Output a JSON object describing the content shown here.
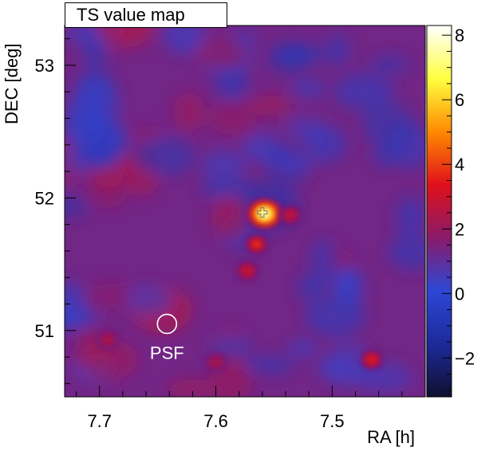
{
  "chart_data": {
    "type": "heatmap",
    "title": "TS value map",
    "xlabel": "RA [h]",
    "ylabel": "DEC [deg]",
    "xlim": [
      7.73,
      7.42
    ],
    "ylim": [
      50.5,
      53.3
    ],
    "x_ticks": [
      {
        "value": 7.7,
        "label": "7.7"
      },
      {
        "value": 7.6,
        "label": "7.6"
      },
      {
        "value": 7.5,
        "label": "7.5"
      }
    ],
    "y_ticks": [
      {
        "value": 53,
        "label": "53"
      },
      {
        "value": 52,
        "label": "52"
      },
      {
        "value": 51,
        "label": "51"
      }
    ],
    "colorbar": {
      "range": [
        -3.2,
        8.3
      ],
      "ticks": [
        {
          "value": 8,
          "label": "8"
        },
        {
          "value": 6,
          "label": "6"
        },
        {
          "value": 4,
          "label": "4"
        },
        {
          "value": 2,
          "label": "2"
        },
        {
          "value": 0,
          "label": "0"
        },
        {
          "value": -2,
          "label": "−2"
        }
      ],
      "colors": [
        "#101030",
        "#1c2a9a",
        "#2d47d6",
        "#8a1a6a",
        "#e0101a",
        "#ff8a00",
        "#ffff40",
        "#ffffff"
      ]
    },
    "background_level": 1.3,
    "hotspots": [
      {
        "ra": 7.558,
        "dec": 51.88,
        "ts": 8.1
      },
      {
        "ra": 7.565,
        "dec": 51.65,
        "ts": 4.2
      },
      {
        "ra": 7.573,
        "dec": 51.45,
        "ts": 3.3
      },
      {
        "ra": 7.536,
        "dec": 51.87,
        "ts": 3.1
      },
      {
        "ra": 7.466,
        "dec": 50.78,
        "ts": 3.8
      },
      {
        "ra": 7.693,
        "dec": 50.93,
        "ts": 2.6
      },
      {
        "ra": 7.6,
        "dec": 50.76,
        "ts": 2.5
      }
    ],
    "source_marker": {
      "ra": 7.56,
      "dec": 51.89
    },
    "psf": {
      "ra": 7.642,
      "dec": 51.05,
      "label": "PSF"
    }
  }
}
